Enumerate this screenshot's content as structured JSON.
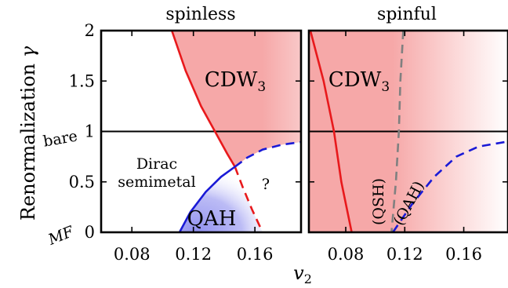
{
  "chart_data": {
    "type": "line",
    "ylabel": "Renormalization",
    "ylabel_symbol": "γ",
    "xlabel": "v",
    "xlabel_sub": "2",
    "ylim": [
      0,
      2
    ],
    "yticks": [
      "0",
      "0.5",
      "1",
      "1.5",
      "2"
    ],
    "ytick_annotations": [
      {
        "text": "bare",
        "y": 1
      },
      {
        "text": "MF",
        "y": 0
      }
    ],
    "panels": [
      {
        "title": "spinless",
        "xlim": [
          0.06,
          0.19
        ],
        "xticks": [
          "0.08",
          "0.12",
          "0.16"
        ],
        "xtick_values": [
          0.08,
          0.12,
          0.16
        ],
        "reference_line_y": 1,
        "series": [
          {
            "name": "CDW3 boundary",
            "style": "solid",
            "color": "#e8191c",
            "points": [
              [
                0.106,
                2.0
              ],
              [
                0.115,
                1.6
              ],
              [
                0.125,
                1.25
              ],
              [
                0.134,
                1.0
              ],
              [
                0.142,
                0.78
              ],
              [
                0.147,
                0.65
              ]
            ]
          },
          {
            "name": "CDW3 boundary (uncertain)",
            "style": "dashed",
            "color": "#e8191c",
            "points": [
              [
                0.147,
                0.65
              ],
              [
                0.152,
                0.45
              ],
              [
                0.158,
                0.23
              ],
              [
                0.165,
                0.0
              ]
            ]
          },
          {
            "name": "QAH boundary",
            "style": "solid",
            "color": "#1a1ad6",
            "points": [
              [
                0.111,
                0.0
              ],
              [
                0.118,
                0.2
              ],
              [
                0.128,
                0.4
              ],
              [
                0.138,
                0.55
              ],
              [
                0.147,
                0.65
              ]
            ]
          },
          {
            "name": "QAH boundary (uncertain)",
            "style": "dashed",
            "color": "#1a1ad6",
            "points": [
              [
                0.147,
                0.65
              ],
              [
                0.155,
                0.74
              ],
              [
                0.165,
                0.82
              ],
              [
                0.178,
                0.87
              ],
              [
                0.19,
                0.895
              ]
            ]
          }
        ],
        "regions": [
          {
            "label": "CDW",
            "sub": "3",
            "color": "#f4a3a3"
          },
          {
            "label": "QAH",
            "color": "#9a9af0"
          },
          {
            "label": "Dirac",
            "label2": "semimetal"
          },
          {
            "label": "?"
          }
        ]
      },
      {
        "title": "spinful",
        "xlim": [
          0.055,
          0.19
        ],
        "xticks": [
          "0.08",
          "0.12",
          "0.16"
        ],
        "xtick_values": [
          0.08,
          0.12,
          0.16
        ],
        "reference_line_y": 1,
        "series": [
          {
            "name": "CDW3 boundary",
            "style": "solid",
            "color": "#e8191c",
            "points": [
              [
                0.056,
                2.0
              ],
              [
                0.065,
                1.5
              ],
              [
                0.072,
                1.0
              ],
              [
                0.077,
                0.5
              ],
              [
                0.084,
                0.0
              ]
            ]
          },
          {
            "name": "QSH boundary",
            "style": "dashed",
            "color": "#808080",
            "points": [
              [
                0.119,
                2.0
              ],
              [
                0.117,
                1.5
              ],
              [
                0.116,
                1.0
              ],
              [
                0.114,
                0.5
              ],
              [
                0.111,
                0.0
              ]
            ]
          },
          {
            "name": "QAH boundary",
            "style": "dashed",
            "color": "#1a1ad6",
            "points": [
              [
                0.112,
                0.0
              ],
              [
                0.125,
                0.28
              ],
              [
                0.14,
                0.55
              ],
              [
                0.155,
                0.75
              ],
              [
                0.17,
                0.85
              ],
              [
                0.19,
                0.9
              ]
            ]
          }
        ],
        "regions": [
          {
            "label": "CDW",
            "sub": "3",
            "color": "#f4a3a3"
          },
          {
            "label": "(QSH)"
          },
          {
            "label": "(QAH)"
          }
        ]
      }
    ]
  }
}
